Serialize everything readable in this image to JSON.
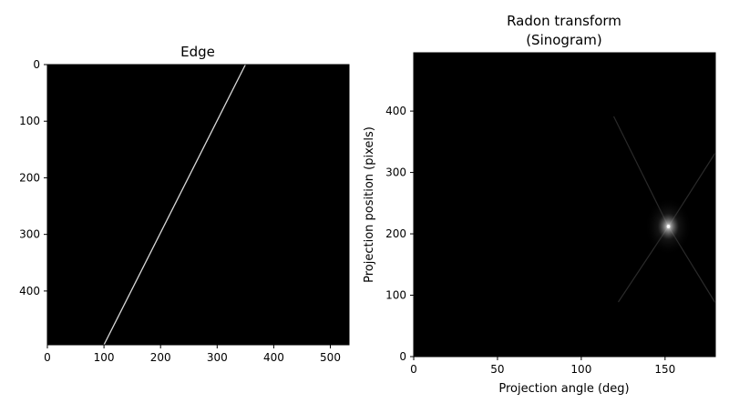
{
  "chart_data": [
    {
      "type": "heatmap",
      "title": "Edge",
      "xlabel": "",
      "ylabel": "",
      "xlim": [
        0,
        533
      ],
      "ylim": [
        495,
        0
      ],
      "xticks": [
        "0",
        "100",
        "200",
        "300",
        "400",
        "500"
      ],
      "yticks": [
        "0",
        "100",
        "200",
        "300",
        "400"
      ],
      "background_color": "#000000",
      "line": {
        "color": "#d9d9d9",
        "points": [
          [
            350,
            0
          ],
          [
            100,
            495
          ]
        ]
      }
    },
    {
      "type": "heatmap",
      "title": "Radon transform\n(Sinogram)",
      "title_lines": [
        "Radon transform",
        "(Sinogram)"
      ],
      "xlabel": "Projection angle (deg)",
      "ylabel": "Projection position (pixels)",
      "xlim": [
        0,
        180
      ],
      "ylim": [
        0,
        495
      ],
      "xticks": [
        "0",
        "50",
        "100",
        "150"
      ],
      "yticks": [
        "0",
        "100",
        "200",
        "300",
        "400"
      ],
      "background_color": "#000000",
      "peak": {
        "angle": 152,
        "position": 212
      }
    }
  ]
}
